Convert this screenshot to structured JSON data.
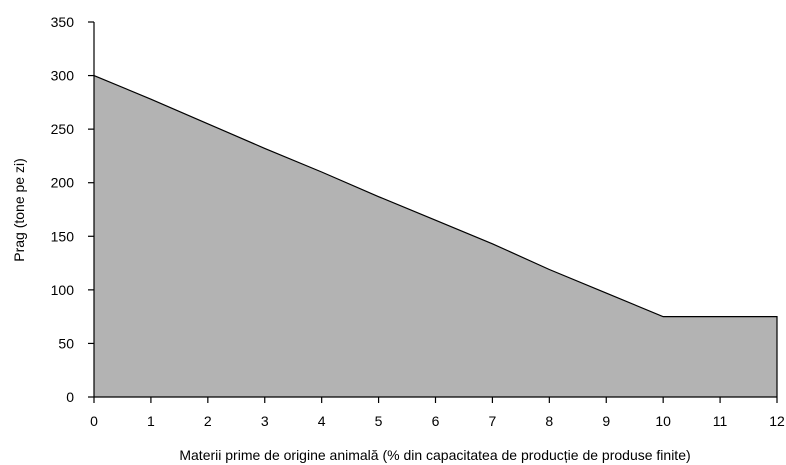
{
  "chart_data": {
    "type": "area",
    "xlabel": "Materii prime de origine animală (% din capacitatea de producție de produse finite)",
    "ylabel": "Prag (tone pe zi)",
    "xlim": [
      0,
      12
    ],
    "ylim": [
      0,
      350
    ],
    "x_ticks": [
      "0",
      "1",
      "2",
      "3",
      "4",
      "5",
      "6",
      "7",
      "8",
      "9",
      "10",
      "11",
      "12"
    ],
    "y_ticks": [
      "0",
      "50",
      "100",
      "150",
      "200",
      "250",
      "300",
      "350"
    ],
    "grid": false,
    "legend": "none",
    "fill_color": "#b3b3b3",
    "line_color": "#000000",
    "series": [
      {
        "x": [
          0,
          1,
          2,
          3,
          4,
          5,
          6,
          7,
          8,
          9,
          10,
          11,
          12
        ],
        "values": [
          300,
          278,
          255,
          232,
          210,
          187,
          165,
          143,
          119,
          97,
          75,
          75,
          75
        ]
      }
    ]
  }
}
